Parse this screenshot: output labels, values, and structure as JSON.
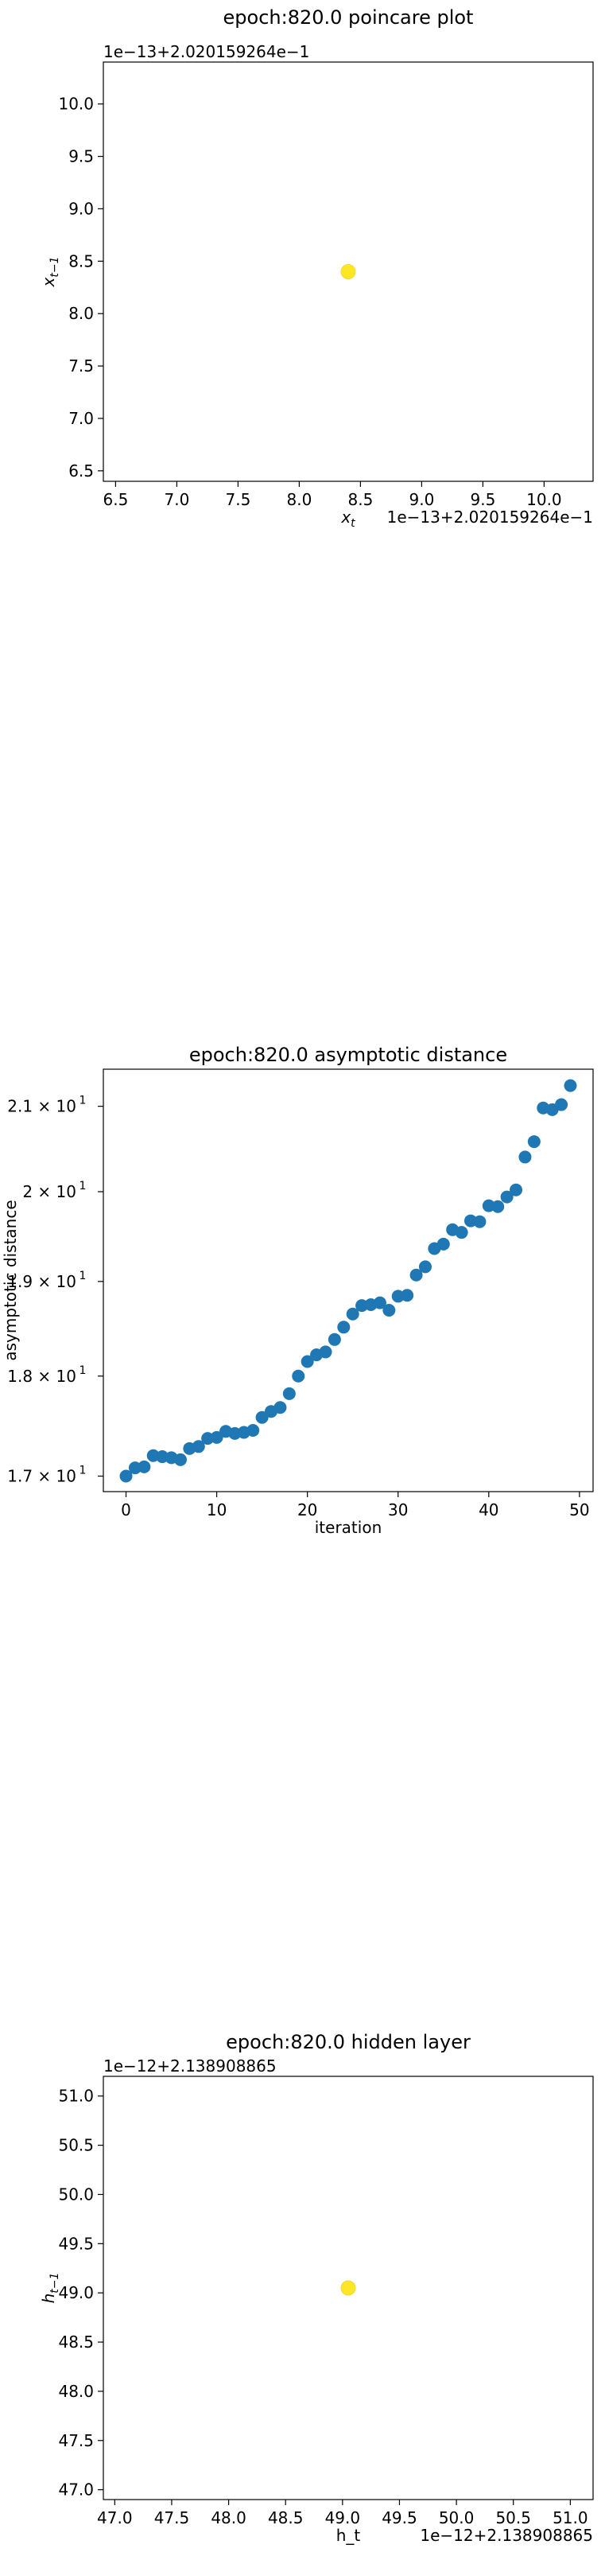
{
  "chart_data": [
    {
      "type": "scatter",
      "title": "epoch:820.0 poincare plot",
      "xlabel": "x_t",
      "ylabel": "x_{t-1}",
      "x_offset_label": "1e−13+2.020159264e−1",
      "y_offset_label": "1e−13+2.020159264e−1",
      "xlim": [
        6.4,
        10.4
      ],
      "ylim": [
        6.4,
        10.4
      ],
      "x_ticks": [
        "6.5",
        "7.0",
        "7.5",
        "8.0",
        "8.5",
        "9.0",
        "9.5",
        "10.0"
      ],
      "y_ticks": [
        "6.5",
        "7.0",
        "7.5",
        "8.0",
        "8.5",
        "9.0",
        "9.5",
        "10.0"
      ],
      "x_tick_values": [
        6.5,
        7.0,
        7.5,
        8.0,
        8.5,
        9.0,
        9.5,
        10.0
      ],
      "y_tick_values": [
        6.5,
        7.0,
        7.5,
        8.0,
        8.5,
        9.0,
        9.5,
        10.0
      ],
      "points": [
        {
          "x": 8.4,
          "y": 8.4
        }
      ],
      "point_color": "#fde725",
      "grid": false
    },
    {
      "type": "scatter",
      "title": "epoch:820.0 asymptotic distance",
      "xlabel": "iteration",
      "ylabel": "asymptotic distance",
      "y_scale": "log",
      "xlim": [
        -2.5,
        51.5
      ],
      "ylim": [
        16.85,
        21.45
      ],
      "x_ticks": [
        "0",
        "10",
        "20",
        "30",
        "40",
        "50"
      ],
      "x_tick_values": [
        0,
        10,
        20,
        30,
        40,
        50
      ],
      "y_ticks": [
        "1.7 × 10",
        "1.8 × 10",
        "1.9 × 10",
        "2 × 10",
        "2.1 × 10"
      ],
      "y_tick_exponent": "1",
      "y_tick_values": [
        17,
        18,
        19,
        20,
        21
      ],
      "x": [
        0,
        1,
        2,
        3,
        4,
        5,
        6,
        7,
        8,
        9,
        10,
        11,
        12,
        13,
        14,
        15,
        16,
        17,
        18,
        19,
        20,
        21,
        22,
        23,
        24,
        25,
        26,
        27,
        28,
        29,
        30,
        31,
        32,
        33,
        34,
        35,
        36,
        37,
        38,
        39,
        40,
        41,
        42,
        43,
        44,
        45,
        46,
        47,
        48,
        49
      ],
      "y": [
        17.0,
        17.08,
        17.09,
        17.2,
        17.19,
        17.18,
        17.16,
        17.27,
        17.29,
        17.37,
        17.38,
        17.44,
        17.42,
        17.43,
        17.45,
        17.58,
        17.64,
        17.68,
        17.82,
        18.0,
        18.15,
        18.22,
        18.25,
        18.38,
        18.51,
        18.65,
        18.74,
        18.75,
        18.77,
        18.69,
        18.84,
        18.85,
        19.07,
        19.16,
        19.36,
        19.41,
        19.57,
        19.54,
        19.67,
        19.66,
        19.84,
        19.83,
        19.94,
        20.02,
        20.4,
        20.58,
        20.98,
        20.96,
        21.02,
        21.25
      ],
      "point_color": "#1f77b4",
      "grid": false
    },
    {
      "type": "scatter",
      "title": "epoch:820.0 hidden layer",
      "xlabel": "h_t",
      "ylabel": "h_{t-1}",
      "x_offset_label": "1e−12+2.138908865",
      "y_offset_label": "1e−12+2.138908865",
      "xlim": [
        46.9,
        51.2
      ],
      "ylim": [
        46.9,
        51.2
      ],
      "x_ticks": [
        "47.0",
        "47.5",
        "48.0",
        "48.5",
        "49.0",
        "49.5",
        "50.0",
        "50.5",
        "51.0"
      ],
      "y_ticks": [
        "47.0",
        "47.5",
        "48.0",
        "48.5",
        "49.0",
        "49.5",
        "50.0",
        "50.5",
        "51.0"
      ],
      "x_tick_values": [
        47.0,
        47.5,
        48.0,
        48.5,
        49.0,
        49.5,
        50.0,
        50.5,
        51.0
      ],
      "y_tick_values": [
        47.0,
        47.5,
        48.0,
        48.5,
        49.0,
        49.5,
        50.0,
        50.5,
        51.0
      ],
      "points": [
        {
          "x": 49.05,
          "y": 49.05
        }
      ],
      "point_color": "#fde725",
      "grid": false
    }
  ]
}
